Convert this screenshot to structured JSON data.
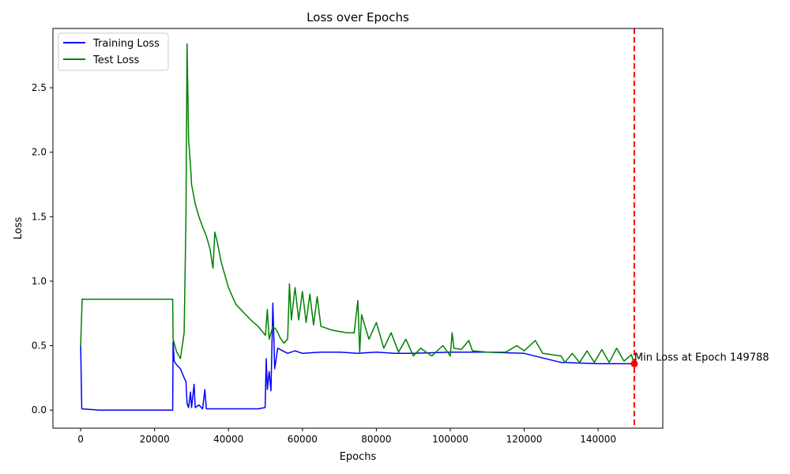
{
  "chart_data": {
    "type": "line",
    "title": "Loss over Epochs",
    "xlabel": "Epochs",
    "ylabel": "Loss",
    "xlim": [
      -7500,
      157500
    ],
    "ylim": [
      -0.14,
      2.96
    ],
    "xticks": [
      0,
      20000,
      40000,
      60000,
      80000,
      100000,
      120000,
      140000
    ],
    "xtick_labels": [
      "0",
      "20000",
      "40000",
      "60000",
      "80000",
      "100000",
      "120000",
      "140000"
    ],
    "yticks": [
      0.0,
      0.5,
      1.0,
      1.5,
      2.0,
      2.5
    ],
    "ytick_labels": [
      "0.0",
      "0.5",
      "1.0",
      "1.5",
      "2.0",
      "2.5"
    ],
    "grid": false,
    "legend_position": "upper left",
    "series": [
      {
        "name": "Training Loss",
        "color": "#0000ff",
        "points": [
          [
            0,
            0.5
          ],
          [
            300,
            0.01
          ],
          [
            5000,
            0.0
          ],
          [
            10000,
            0.0
          ],
          [
            15000,
            0.0
          ],
          [
            20000,
            0.0
          ],
          [
            24900,
            0.0
          ],
          [
            25000,
            0.53
          ],
          [
            25300,
            0.38
          ],
          [
            26000,
            0.35
          ],
          [
            27000,
            0.32
          ],
          [
            28000,
            0.25
          ],
          [
            28500,
            0.22
          ],
          [
            28800,
            0.05
          ],
          [
            29200,
            0.02
          ],
          [
            29700,
            0.14
          ],
          [
            30000,
            0.02
          ],
          [
            30700,
            0.2
          ],
          [
            31000,
            0.02
          ],
          [
            32000,
            0.04
          ],
          [
            33000,
            0.01
          ],
          [
            33600,
            0.16
          ],
          [
            34000,
            0.01
          ],
          [
            36000,
            0.01
          ],
          [
            40000,
            0.01
          ],
          [
            44000,
            0.01
          ],
          [
            48000,
            0.01
          ],
          [
            49900,
            0.02
          ],
          [
            50200,
            0.4
          ],
          [
            50500,
            0.16
          ],
          [
            51000,
            0.3
          ],
          [
            51500,
            0.15
          ],
          [
            52000,
            0.83
          ],
          [
            52500,
            0.32
          ],
          [
            53300,
            0.48
          ],
          [
            54000,
            0.47
          ],
          [
            56000,
            0.44
          ],
          [
            58000,
            0.46
          ],
          [
            60000,
            0.44
          ],
          [
            65000,
            0.45
          ],
          [
            70000,
            0.45
          ],
          [
            75000,
            0.44
          ],
          [
            80000,
            0.45
          ],
          [
            85000,
            0.44
          ],
          [
            90000,
            0.44
          ],
          [
            100000,
            0.45
          ],
          [
            110000,
            0.45
          ],
          [
            120000,
            0.44
          ],
          [
            130000,
            0.37
          ],
          [
            140000,
            0.36
          ],
          [
            149788,
            0.36
          ]
        ]
      },
      {
        "name": "Test Loss",
        "color": "#008000",
        "points": [
          [
            0,
            0.5
          ],
          [
            400,
            0.86
          ],
          [
            5000,
            0.86
          ],
          [
            10000,
            0.86
          ],
          [
            15000,
            0.86
          ],
          [
            20000,
            0.86
          ],
          [
            24900,
            0.86
          ],
          [
            25000,
            0.55
          ],
          [
            26000,
            0.45
          ],
          [
            27000,
            0.4
          ],
          [
            28000,
            0.6
          ],
          [
            28500,
            1.5
          ],
          [
            28800,
            2.84
          ],
          [
            29200,
            2.1
          ],
          [
            29700,
            1.9
          ],
          [
            30000,
            1.75
          ],
          [
            31000,
            1.6
          ],
          [
            32000,
            1.5
          ],
          [
            33000,
            1.42
          ],
          [
            34000,
            1.35
          ],
          [
            35000,
            1.25
          ],
          [
            35800,
            1.1
          ],
          [
            36300,
            1.38
          ],
          [
            37000,
            1.3
          ],
          [
            38000,
            1.15
          ],
          [
            40000,
            0.95
          ],
          [
            42000,
            0.82
          ],
          [
            44000,
            0.76
          ],
          [
            46000,
            0.7
          ],
          [
            48000,
            0.65
          ],
          [
            50000,
            0.58
          ],
          [
            50500,
            0.78
          ],
          [
            51000,
            0.55
          ],
          [
            52000,
            0.65
          ],
          [
            53000,
            0.62
          ],
          [
            54000,
            0.56
          ],
          [
            55000,
            0.52
          ],
          [
            56000,
            0.55
          ],
          [
            56500,
            0.98
          ],
          [
            57000,
            0.7
          ],
          [
            58000,
            0.95
          ],
          [
            59000,
            0.7
          ],
          [
            60000,
            0.92
          ],
          [
            61000,
            0.68
          ],
          [
            62000,
            0.9
          ],
          [
            63000,
            0.66
          ],
          [
            64000,
            0.88
          ],
          [
            65000,
            0.65
          ],
          [
            66000,
            0.64
          ],
          [
            68000,
            0.62
          ],
          [
            70000,
            0.61
          ],
          [
            72000,
            0.6
          ],
          [
            74000,
            0.6
          ],
          [
            75000,
            0.85
          ],
          [
            75500,
            0.45
          ],
          [
            76000,
            0.74
          ],
          [
            78000,
            0.55
          ],
          [
            80000,
            0.68
          ],
          [
            82000,
            0.48
          ],
          [
            84000,
            0.6
          ],
          [
            86000,
            0.45
          ],
          [
            88000,
            0.55
          ],
          [
            90000,
            0.42
          ],
          [
            92000,
            0.48
          ],
          [
            95000,
            0.42
          ],
          [
            98000,
            0.5
          ],
          [
            100000,
            0.42
          ],
          [
            100500,
            0.6
          ],
          [
            101000,
            0.48
          ],
          [
            103000,
            0.47
          ],
          [
            105000,
            0.54
          ],
          [
            106000,
            0.46
          ],
          [
            110000,
            0.45
          ],
          [
            115000,
            0.45
          ],
          [
            118000,
            0.5
          ],
          [
            120000,
            0.46
          ],
          [
            123000,
            0.54
          ],
          [
            125000,
            0.44
          ],
          [
            130000,
            0.42
          ],
          [
            131000,
            0.37
          ],
          [
            133000,
            0.44
          ],
          [
            135000,
            0.37
          ],
          [
            137000,
            0.46
          ],
          [
            139000,
            0.37
          ],
          [
            141000,
            0.47
          ],
          [
            143000,
            0.37
          ],
          [
            145000,
            0.48
          ],
          [
            147000,
            0.38
          ],
          [
            149000,
            0.43
          ],
          [
            149788,
            0.36
          ]
        ]
      }
    ],
    "annotations": [
      {
        "text": "Min Loss at Epoch 149788",
        "x": 149788,
        "y": 0.36,
        "marker_color": "#ff0000",
        "vline_color": "#ff0000",
        "vline_style": "dashed"
      }
    ]
  }
}
